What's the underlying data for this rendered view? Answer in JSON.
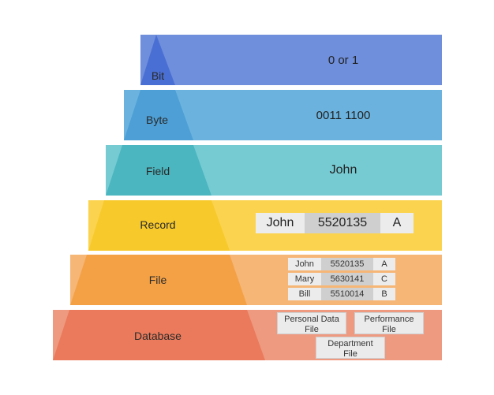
{
  "levels": [
    {
      "label": "Bit",
      "value": "0 or 1"
    },
    {
      "label": "Byte",
      "value": "0011 1100"
    },
    {
      "label": "Field",
      "value": "John"
    },
    {
      "label": "Record"
    },
    {
      "label": "File"
    },
    {
      "label": "Database"
    }
  ],
  "record": [
    "John",
    "5520135",
    "A"
  ],
  "file_rows": [
    [
      "John",
      "5520135",
      "A"
    ],
    [
      "Mary",
      "5630141",
      "C"
    ],
    [
      "Bill",
      "5510014",
      "B"
    ]
  ],
  "database_files": [
    {
      "line1": "Personal Data",
      "line2": "File"
    },
    {
      "line1": "Performance",
      "line2": "File"
    },
    {
      "line1": "Department",
      "line2": "File"
    }
  ],
  "colors": {
    "bit": "#6f8fdc",
    "bit_dark": "#4a6fd4",
    "byte": "#6bb3de",
    "byte_dark": "#4d9fd6",
    "field": "#76cbd3",
    "field_dark": "#4bb6c0",
    "record": "#fbd34f",
    "record_dark": "#f7c92b",
    "file": "#f6b676",
    "file_dark": "#f4a146",
    "database": "#ee9a80",
    "database_dark": "#ea7a5b"
  }
}
